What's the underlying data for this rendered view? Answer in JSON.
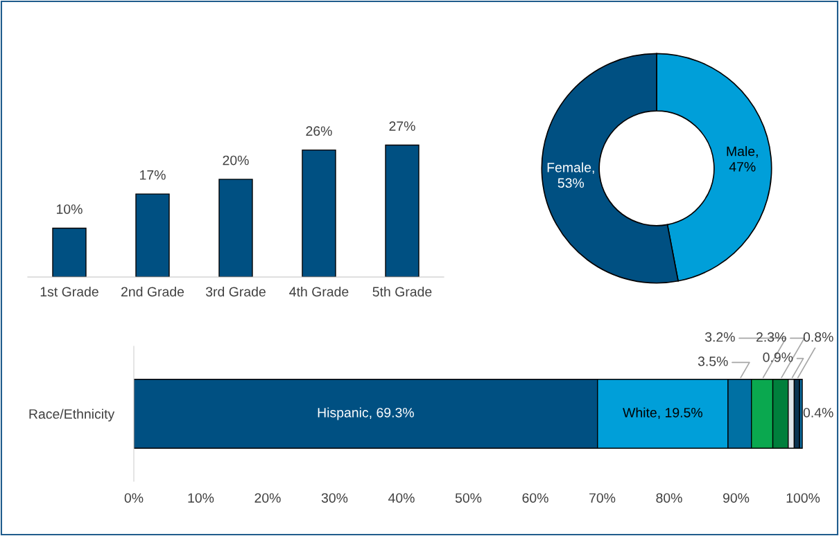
{
  "chart_data": [
    {
      "type": "bar",
      "categories": [
        "1st Grade",
        "2nd Grade",
        "3rd Grade",
        "4th Grade",
        "5th Grade"
      ],
      "values": [
        10,
        17,
        20,
        26,
        27
      ],
      "value_labels": [
        "10%",
        "17%",
        "20%",
        "26%",
        "27%"
      ],
      "color": "#005082",
      "grid": false,
      "legend": false
    },
    {
      "type": "donut",
      "categories": [
        "Male",
        "Female"
      ],
      "values": [
        47,
        53
      ],
      "colors": [
        "#009fd9",
        "#005082"
      ],
      "value_labels": [
        ",\n47%",
        ",\n53%"
      ],
      "legend": false
    },
    {
      "type": "bar",
      "orientation": "horizontal",
      "stacked": true,
      "categories": [
        "Race/Ethnicity"
      ],
      "xlim": [
        0,
        100
      ],
      "xticks": [
        {
          "value": 0,
          "label": "0%"
        },
        {
          "value": 10,
          "label": "10%"
        },
        {
          "value": 20,
          "label": "20%"
        },
        {
          "value": 30,
          "label": "30%"
        },
        {
          "value": 40,
          "label": "40%"
        },
        {
          "value": 50,
          "label": "50%"
        },
        {
          "value": 60,
          "label": "60%"
        },
        {
          "value": 70,
          "label": "70%"
        },
        {
          "value": 80,
          "label": "80%"
        },
        {
          "value": 90,
          "label": "90%"
        },
        {
          "value": 100,
          "label": "100%"
        }
      ],
      "grid": false,
      "legend": false,
      "series": [
        {
          "name": "Hispanic",
          "color": "#005082",
          "values": [
            69.3
          ],
          "value_labels": [
            ", 69.3%"
          ]
        },
        {
          "name": "White",
          "color": "#009fd9",
          "values": [
            19.5
          ],
          "value_labels": [
            ", 19.5%"
          ]
        },
        {
          "color": "#0070a3",
          "values": [
            3.5
          ],
          "value_labels": [
            "3.5%"
          ]
        },
        {
          "color": "#0aa84f",
          "values": [
            3.2
          ],
          "value_labels": [
            "3.2%"
          ]
        },
        {
          "color": "#007f3c",
          "values": [
            2.3
          ],
          "value_labels": [
            "2.3%"
          ]
        },
        {
          "color": "#e2e6ea",
          "values": [
            0.9
          ],
          "value_labels": [
            "0.9%"
          ]
        },
        {
          "color": "#0c3451",
          "values": [
            0.8
          ],
          "value_labels": [
            "0.8%"
          ]
        },
        {
          "color": "#0a6fa5",
          "values": [
            0.4
          ],
          "value_labels": [
            "0.4%"
          ]
        }
      ]
    }
  ]
}
